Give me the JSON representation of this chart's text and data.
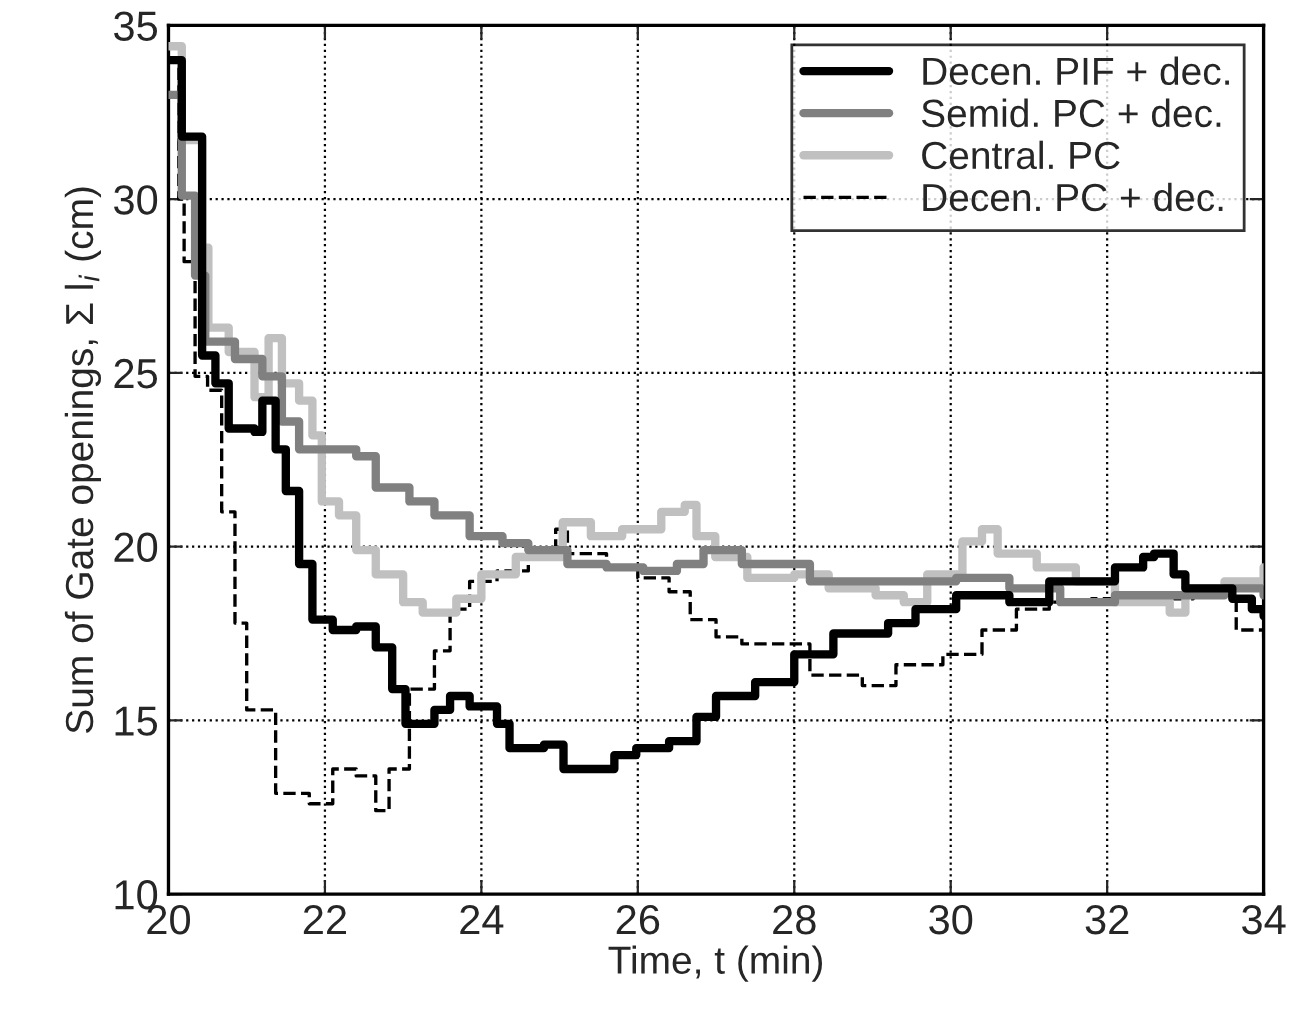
{
  "chart_data": {
    "type": "step",
    "xlabel": "Time, t (min)",
    "ylabel": "Sum of Gate openings, Σ l$_{i}$ (cm)",
    "xlim": [
      20,
      34
    ],
    "ylim": [
      10,
      35
    ],
    "xticks": [
      20,
      22,
      24,
      26,
      28,
      30,
      32,
      34
    ],
    "yticks": [
      10,
      15,
      20,
      25,
      30,
      35
    ],
    "grid": true,
    "legend": "top right",
    "series": [
      {
        "name": "Decen. PIF + dec.",
        "color": "#000000",
        "line_style": "solid",
        "x": [
          20,
          20.17,
          20.43,
          20.6,
          20.77,
          21.1,
          21.2,
          21.37,
          21.5,
          21.67,
          21.84,
          22.1,
          22.4,
          22.65,
          22.86,
          23.03,
          23.4,
          23.6,
          23.85,
          24.2,
          24.36,
          24.8,
          25.05,
          25.4,
          25.7,
          25.98,
          26.4,
          26.75,
          27.0,
          27.5,
          28.0,
          28.5,
          29.2,
          29.55,
          30.07,
          30.75,
          31.26,
          31.8,
          32.1,
          32.46,
          32.6,
          32.85,
          33.0,
          33.6,
          33.85,
          34
        ],
        "values": [
          34,
          31.8,
          25.5,
          24.7,
          23.4,
          23.3,
          24.2,
          22.8,
          21.6,
          19.5,
          17.9,
          17.6,
          17.7,
          17.1,
          15.9,
          14.9,
          15.3,
          15.7,
          15.4,
          14.9,
          14.2,
          14.3,
          13.6,
          13.6,
          14.0,
          14.2,
          14.4,
          15.1,
          15.7,
          16.1,
          16.9,
          17.5,
          17.8,
          18.2,
          18.6,
          18.4,
          19.0,
          19.0,
          19.4,
          19.7,
          19.8,
          19.2,
          18.8,
          18.5,
          18.2,
          18.0
        ]
      },
      {
        "name": "Semid. PC + dec.",
        "color": "#808080",
        "line_style": "solid",
        "x": [
          20,
          20.17,
          20.34,
          20.47,
          20.85,
          21.2,
          21.45,
          21.67,
          21.96,
          22.4,
          22.65,
          23.08,
          23.4,
          23.85,
          24.27,
          24.6,
          25.1,
          25.6,
          26.07,
          26.5,
          26.84,
          27.33,
          28.2,
          28.8,
          29.4,
          30.07,
          30.75,
          31.4,
          32.1,
          32.8,
          33.5,
          34
        ],
        "values": [
          33,
          30.1,
          27.8,
          25.9,
          25.4,
          24.9,
          23.6,
          22.8,
          22.8,
          22.6,
          21.7,
          21.3,
          20.9,
          20.3,
          20.1,
          19.9,
          19.5,
          19.4,
          19.3,
          19.5,
          19.9,
          19.5,
          19.0,
          19.0,
          19.0,
          19.1,
          18.8,
          18.4,
          18.6,
          18.6,
          18.8,
          18.6
        ]
      },
      {
        "name": "Central. PC",
        "color": "#c0c0c0",
        "line_style": "solid",
        "x": [
          20,
          20.17,
          20.43,
          20.51,
          20.77,
          21.1,
          21.28,
          21.45,
          21.67,
          21.84,
          21.96,
          22.18,
          22.4,
          22.65,
          23.0,
          23.25,
          23.68,
          24.0,
          24.44,
          25.04,
          25.4,
          25.8,
          26.3,
          26.6,
          26.75,
          26.99,
          27.4,
          28.0,
          28.44,
          29.04,
          29.4,
          29.7,
          30.15,
          30.4,
          30.6,
          31.1,
          31.6,
          32.1,
          32.8,
          33.0,
          33.5,
          34
        ],
        "values": [
          34.4,
          31.7,
          28.6,
          26.3,
          25.6,
          24.3,
          26.0,
          24.7,
          24.2,
          23.2,
          21.3,
          20.9,
          19.9,
          19.2,
          18.4,
          18.1,
          18.5,
          19.2,
          19.7,
          20.7,
          20.3,
          20.5,
          21.0,
          21.2,
          20.3,
          19.7,
          19.1,
          19.2,
          18.8,
          18.6,
          18.4,
          19.2,
          20.15,
          20.5,
          19.8,
          19.4,
          19.0,
          18.4,
          18.1,
          18.8,
          19.0,
          19.4
        ]
      },
      {
        "name": "Decen. PC + dec.",
        "color": "#000000",
        "line_style": "dashed",
        "x": [
          20,
          20.13,
          20.2,
          20.34,
          20.5,
          20.68,
          20.85,
          21.0,
          21.37,
          21.8,
          22.1,
          22.4,
          22.65,
          22.82,
          23.08,
          23.4,
          23.6,
          23.85,
          24.2,
          24.6,
          24.95,
          25.1,
          25.6,
          26.0,
          26.4,
          26.67,
          27.0,
          27.33,
          28.2,
          28.87,
          29.3,
          29.9,
          30.4,
          30.84,
          31.26,
          31.8,
          32.46,
          33.1,
          33.65,
          34
        ],
        "values": [
          34,
          30,
          28.2,
          24.9,
          24.5,
          21.0,
          17.8,
          15.3,
          12.9,
          12.6,
          13.6,
          13.4,
          12.4,
          13.6,
          15.9,
          17.0,
          18.2,
          19.0,
          19.3,
          19.9,
          20.5,
          19.8,
          19.4,
          19.1,
          18.7,
          17.9,
          17.4,
          17.2,
          16.3,
          16.0,
          16.6,
          16.9,
          17.6,
          18.2,
          18.4,
          18.5,
          18.5,
          18.6,
          17.6,
          17.3
        ]
      }
    ]
  }
}
